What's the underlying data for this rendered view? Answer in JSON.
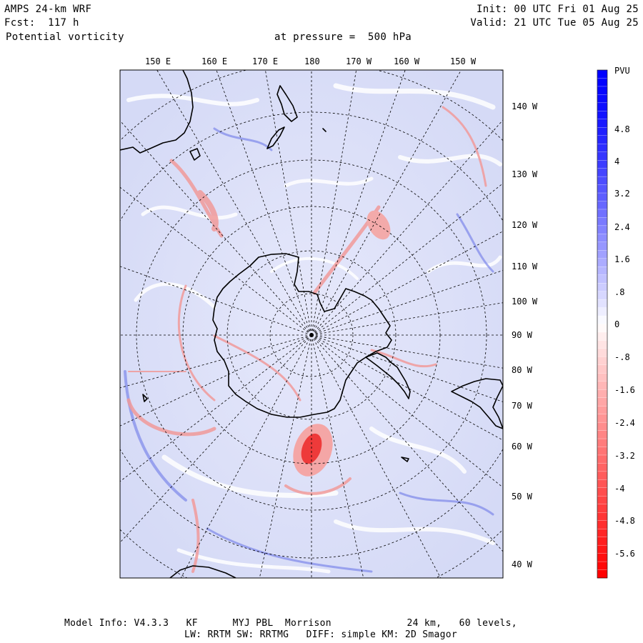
{
  "header": {
    "model": "AMPS 24-km WRF",
    "fcst": "Fcst:  117 h",
    "field": "Potential vorticity",
    "level": "at pressure =  500 hPa",
    "init": "Init: 00 UTC Fri 01 Aug 25",
    "valid": "Valid: 21 UTC Tue 05 Aug 25"
  },
  "map": {
    "projection": "polar-stereographic south",
    "top_labels": [
      "150 E",
      "160 E",
      "170 E",
      "180",
      "170 W",
      "160 W",
      "150 W"
    ],
    "right_labels": [
      "140 W",
      "130 W",
      "120 W",
      "110 W",
      "100 W",
      "90 W",
      "80 W",
      "70 W",
      "60 W",
      "50 W",
      "40 W"
    ],
    "grid_color": "#000000",
    "coast_color": "#000000"
  },
  "colorbar": {
    "title": "PVU",
    "labels": [
      "4.8",
      "4",
      "3.2",
      "2.4",
      "1.6",
      ".8",
      "0",
      "-.8",
      "-1.6",
      "-2.4",
      "-3.2",
      "-4",
      "-4.8",
      "-5.6"
    ],
    "positive_color": "#0000ff",
    "negative_color": "#ff0000",
    "neutral_color": "#ffffff"
  },
  "footer": {
    "line1": "Model Info: V4.3.3   KF      MYJ PBL  Morrison             24 km,   60 levels,",
    "line2": "LW: RRTM SW: RRTMG   DIFF: simple KM: 2D Smagor"
  }
}
